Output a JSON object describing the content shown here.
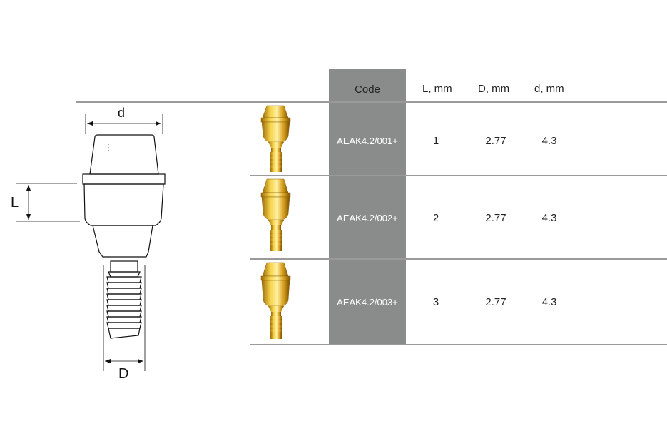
{
  "table": {
    "headers": {
      "code": "Code",
      "l": "L, mm",
      "d_big": "D, mm",
      "d_small": "d, mm"
    },
    "rows": [
      {
        "code": "AEAK4.2/001+",
        "L": "1",
        "D": "2.77",
        "d": "4.3"
      },
      {
        "code": "AEAK4.2/002+",
        "L": "2",
        "D": "2.77",
        "d": "4.3"
      },
      {
        "code": "AEAK4.2/003+",
        "L": "3",
        "D": "2.77",
        "d": "4.3"
      }
    ]
  },
  "diagram": {
    "label_d": "d",
    "label_L": "L",
    "label_D": "D"
  },
  "colors": {
    "code_column": "#8a8c8c",
    "rule": "#9a9a9a",
    "gold": "#d9a21e"
  }
}
